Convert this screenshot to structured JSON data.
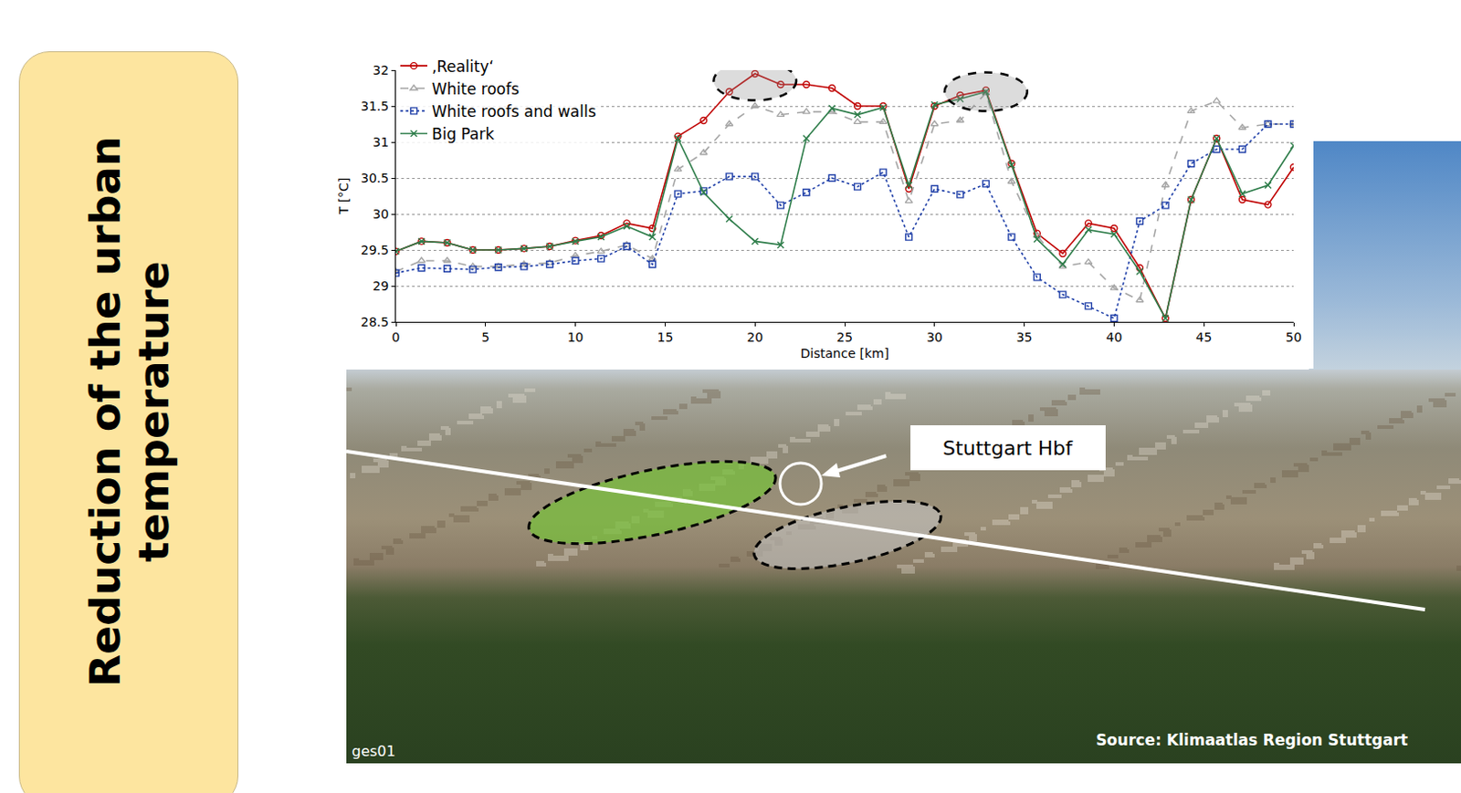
{
  "chart_data": {
    "type": "line",
    "x_label": "Distance [km]",
    "y_label": "T [°C]",
    "x": [
      0,
      1.43,
      2.86,
      4.29,
      5.71,
      7.14,
      8.57,
      10,
      11.43,
      12.86,
      14.29,
      15.71,
      17.14,
      18.57,
      20,
      21.43,
      22.86,
      24.29,
      25.71,
      27.14,
      28.57,
      30,
      31.43,
      32.86,
      34.29,
      35.71,
      37.14,
      38.57,
      40,
      41.43,
      42.86,
      44.29,
      45.71,
      47.14,
      48.57,
      50
    ],
    "series": [
      {
        "name": "‚Reality‘",
        "color": "#c00000",
        "marker": "circle-open",
        "line_style": "solid",
        "values": [
          29.48,
          29.62,
          29.6,
          29.5,
          29.5,
          29.52,
          29.55,
          29.63,
          29.7,
          29.87,
          29.8,
          31.08,
          31.3,
          31.7,
          31.95,
          31.8,
          31.8,
          31.75,
          31.5,
          31.5,
          30.35,
          31.5,
          31.65,
          31.72,
          30.7,
          29.73,
          29.45,
          29.87,
          29.8,
          29.25,
          28.55,
          30.2,
          31.05,
          30.2,
          30.13,
          30.65
        ]
      },
      {
        "name": "White roofs",
        "color": "#a6a6a6",
        "marker": "triangle-open",
        "line_style": "dash",
        "values": [
          29.2,
          29.35,
          29.35,
          29.27,
          29.27,
          29.3,
          29.32,
          29.42,
          29.48,
          29.57,
          29.38,
          30.62,
          30.85,
          31.25,
          31.5,
          31.38,
          31.42,
          31.42,
          31.28,
          31.28,
          30.18,
          31.25,
          31.3,
          31.68,
          30.45,
          29.7,
          29.27,
          29.33,
          28.97,
          28.8,
          30.4,
          31.43,
          31.57,
          31.2,
          31.25,
          31.25
        ]
      },
      {
        "name": "White roofs and walls",
        "color": "#1f3fa8",
        "marker": "square-open",
        "line_style": "dot",
        "values": [
          29.18,
          29.25,
          29.24,
          29.23,
          29.26,
          29.27,
          29.3,
          29.35,
          29.38,
          29.55,
          29.3,
          30.28,
          30.32,
          30.52,
          30.52,
          30.12,
          30.3,
          30.5,
          30.38,
          30.58,
          29.68,
          30.35,
          30.27,
          30.42,
          29.68,
          29.12,
          28.88,
          28.72,
          28.55,
          29.9,
          30.12,
          30.7,
          30.9,
          30.9,
          31.25,
          31.25
        ]
      },
      {
        "name": "Big Park",
        "color": "#2e7d4a",
        "marker": "x",
        "line_style": "solid",
        "values": [
          29.48,
          29.62,
          29.6,
          29.5,
          29.5,
          29.52,
          29.55,
          29.62,
          29.68,
          29.83,
          29.68,
          31.05,
          30.3,
          29.93,
          29.62,
          29.57,
          31.05,
          31.47,
          31.38,
          31.48,
          30.4,
          31.52,
          31.6,
          31.7,
          30.68,
          29.65,
          29.3,
          29.78,
          29.72,
          29.2,
          28.55,
          30.2,
          31.05,
          30.28,
          30.4,
          30.95
        ]
      }
    ],
    "highlights": [
      {
        "x": 20,
        "y": 31.85
      },
      {
        "x": 32.86,
        "y": 31.7
      }
    ],
    "xlim": [
      0,
      50
    ],
    "xticks": [
      0,
      5,
      10,
      15,
      20,
      25,
      30,
      35,
      40,
      45,
      50
    ],
    "ylim": [
      28.5,
      32
    ],
    "yticks": [
      28.5,
      29,
      29.5,
      30,
      30.5,
      31,
      31.5,
      32
    ],
    "grid": true,
    "legend": "upper left"
  },
  "slide": {
    "side_title": "Reduction of the urban temperature",
    "photo": {
      "marker_label": "Stuttgart Hbf",
      "corner_code": "ges01",
      "source": "Source: Klimaatlas Region Stuttgart"
    }
  }
}
